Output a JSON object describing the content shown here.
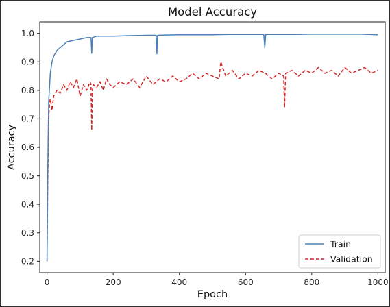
{
  "chart_data": {
    "type": "line",
    "title": "Model Accuracy",
    "xlabel": "Epoch",
    "ylabel": "Accuracy",
    "xlim": [
      -22,
      1022
    ],
    "ylim": [
      0.16,
      1.04
    ],
    "xticks": [
      0,
      200,
      400,
      600,
      800,
      1000
    ],
    "yticks": [
      0.2,
      0.3,
      0.4,
      0.5,
      0.6,
      0.7,
      0.8,
      0.9,
      1.0
    ],
    "grid": false,
    "legend_position": "lower right",
    "colors": {
      "train": "#4a81b9",
      "validation": "#d62728"
    },
    "series": [
      {
        "name": "Train",
        "style": "solid",
        "x": [
          0,
          2,
          5,
          10,
          15,
          20,
          30,
          40,
          60,
          80,
          100,
          120,
          133,
          135,
          137,
          150,
          200,
          250,
          300,
          330,
          332,
          334,
          360,
          400,
          450,
          500,
          550,
          600,
          655,
          658,
          661,
          700,
          750,
          800,
          850,
          900,
          950,
          1000
        ],
        "y": [
          0.2,
          0.5,
          0.76,
          0.86,
          0.9,
          0.92,
          0.94,
          0.95,
          0.97,
          0.975,
          0.98,
          0.985,
          0.985,
          0.93,
          0.985,
          0.99,
          0.99,
          0.992,
          0.993,
          0.993,
          0.928,
          0.993,
          0.994,
          0.995,
          0.995,
          0.995,
          0.996,
          0.996,
          0.996,
          0.95,
          0.996,
          0.996,
          0.996,
          0.997,
          0.997,
          0.997,
          0.997,
          0.995
        ]
      },
      {
        "name": "Validation",
        "style": "dashed",
        "x": [
          0,
          2,
          4,
          6,
          8,
          10,
          15,
          20,
          30,
          40,
          50,
          60,
          70,
          80,
          90,
          100,
          110,
          120,
          130,
          133,
          135,
          137,
          140,
          150,
          160,
          170,
          180,
          190,
          200,
          220,
          240,
          260,
          280,
          300,
          320,
          340,
          360,
          380,
          400,
          420,
          440,
          460,
          480,
          500,
          520,
          525,
          540,
          560,
          580,
          600,
          620,
          640,
          660,
          680,
          700,
          715,
          718,
          721,
          740,
          760,
          780,
          800,
          820,
          840,
          860,
          880,
          900,
          920,
          940,
          960,
          980,
          1000
        ],
        "y": [
          0.2,
          0.45,
          0.63,
          0.72,
          0.76,
          0.77,
          0.73,
          0.78,
          0.8,
          0.79,
          0.82,
          0.8,
          0.83,
          0.81,
          0.84,
          0.78,
          0.82,
          0.8,
          0.83,
          0.82,
          0.66,
          0.8,
          0.82,
          0.81,
          0.83,
          0.8,
          0.84,
          0.82,
          0.81,
          0.83,
          0.82,
          0.84,
          0.81,
          0.85,
          0.82,
          0.84,
          0.83,
          0.85,
          0.83,
          0.84,
          0.86,
          0.84,
          0.86,
          0.85,
          0.84,
          0.9,
          0.85,
          0.87,
          0.84,
          0.86,
          0.85,
          0.87,
          0.86,
          0.84,
          0.86,
          0.85,
          0.74,
          0.86,
          0.87,
          0.85,
          0.87,
          0.86,
          0.88,
          0.86,
          0.87,
          0.85,
          0.88,
          0.86,
          0.87,
          0.88,
          0.86,
          0.87
        ]
      }
    ]
  }
}
